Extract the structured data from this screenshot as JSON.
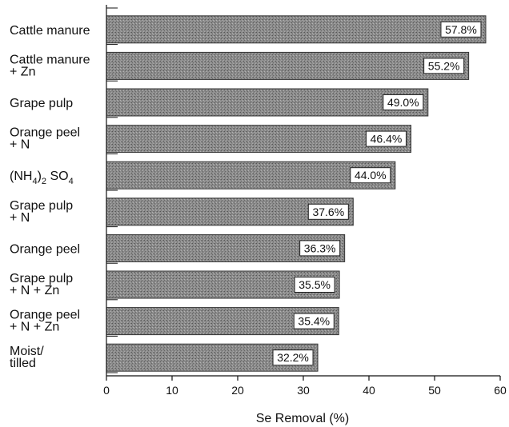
{
  "chart_data": {
    "type": "bar",
    "orientation": "horizontal",
    "categories": [
      [
        "Cattle manure"
      ],
      [
        "Cattle manure",
        "+ Zn"
      ],
      [
        "Grape pulp"
      ],
      [
        "Orange peel",
        "+ N"
      ],
      [
        "(NH4)2 SO4"
      ],
      [
        "Grape pulp",
        "+ N"
      ],
      [
        "Orange peel"
      ],
      [
        "Grape pulp",
        "+ N + Zn"
      ],
      [
        "Orange peel",
        "+ N + Zn"
      ],
      [
        "Moist/",
        "tilled"
      ]
    ],
    "values": [
      57.8,
      55.2,
      49.0,
      46.4,
      44.0,
      37.6,
      36.3,
      35.5,
      35.4,
      32.2
    ],
    "value_labels": [
      "57.8%",
      "55.2%",
      "49.0%",
      "46.4%",
      "44.0%",
      "37.6%",
      "36.3%",
      "35.5%",
      "35.4%",
      "32.2%"
    ],
    "xlabel": "Se Removal (%)",
    "xlim": [
      0,
      60
    ],
    "xticks": [
      0,
      10,
      20,
      30,
      40,
      50,
      60
    ],
    "bar_color": "#8a8a8a",
    "grid": false
  }
}
